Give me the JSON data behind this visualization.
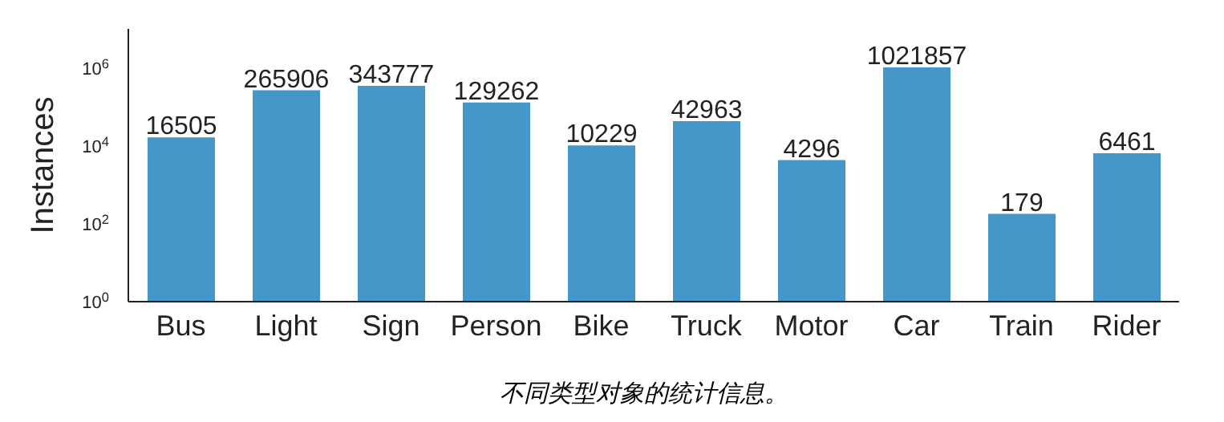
{
  "chart_data": {
    "type": "bar",
    "ylabel": "Instances",
    "categories": [
      "Bus",
      "Light",
      "Sign",
      "Person",
      "Bike",
      "Truck",
      "Motor",
      "Car",
      "Train",
      "Rider"
    ],
    "values": [
      16505,
      265906,
      343777,
      129262,
      10229,
      42963,
      4296,
      1021857,
      179,
      6461
    ],
    "color": "#4398c9",
    "log": "y",
    "ylim": [
      1,
      10000000
    ],
    "yticks": [
      {
        "value": 1,
        "label": "10$^{0}$"
      },
      {
        "value": 100,
        "label": "10$^{2}$"
      },
      {
        "value": 10000,
        "label": "10$^{4}$"
      },
      {
        "value": 1000000,
        "label": "10$^{6}$"
      }
    ],
    "data_labels": true,
    "grid": false,
    "annotations": [
      "不同类型对象的统计信息。"
    ]
  }
}
